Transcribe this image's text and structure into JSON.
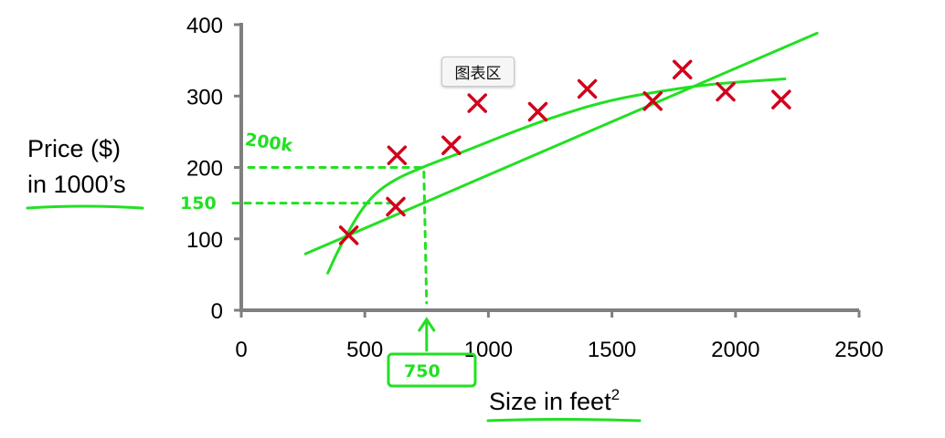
{
  "chart_data": {
    "type": "scatter",
    "title": "",
    "ylabel_line1": "Price ($)",
    "ylabel_line2": "in 1000’s",
    "xlabel": "Size in feet",
    "xlabel_sup": "2",
    "xlim": [
      0,
      2500
    ],
    "ylim": [
      0,
      400
    ],
    "x_ticks": [
      0,
      500,
      1000,
      1500,
      2000,
      2500
    ],
    "y_ticks": [
      0,
      100,
      200,
      300,
      400
    ],
    "grid": false,
    "marker": "x",
    "marker_color": "#d0021b",
    "series": [
      {
        "points": [
          [
            435,
            105
          ],
          [
            625,
            145
          ],
          [
            630,
            217
          ],
          [
            850,
            231
          ],
          [
            955,
            290
          ],
          [
            1200,
            278
          ],
          [
            1400,
            310
          ],
          [
            1665,
            293
          ],
          [
            1785,
            337
          ],
          [
            1960,
            306
          ],
          [
            2185,
            295
          ]
        ]
      }
    ],
    "annotations": {
      "color": "#22e022",
      "linear_fit": [
        [
          260,
          79
        ],
        [
          2330,
          388
        ]
      ],
      "quadratic_fit": [
        [
          350,
          52
        ],
        [
          400,
          90
        ],
        [
          500,
          150
        ],
        [
          600,
          180
        ],
        [
          750,
          203
        ],
        [
          900,
          222
        ],
        [
          1100,
          250
        ],
        [
          1300,
          275
        ],
        [
          1500,
          295
        ],
        [
          1700,
          307
        ],
        [
          1900,
          317
        ],
        [
          2200,
          324
        ]
      ],
      "label_200k": "200k",
      "label_150": "150",
      "label_750": "750",
      "x_mark": 750,
      "y_mark_high": 200,
      "y_mark_low": 150
    }
  },
  "tooltip": {
    "label": "图表区"
  }
}
